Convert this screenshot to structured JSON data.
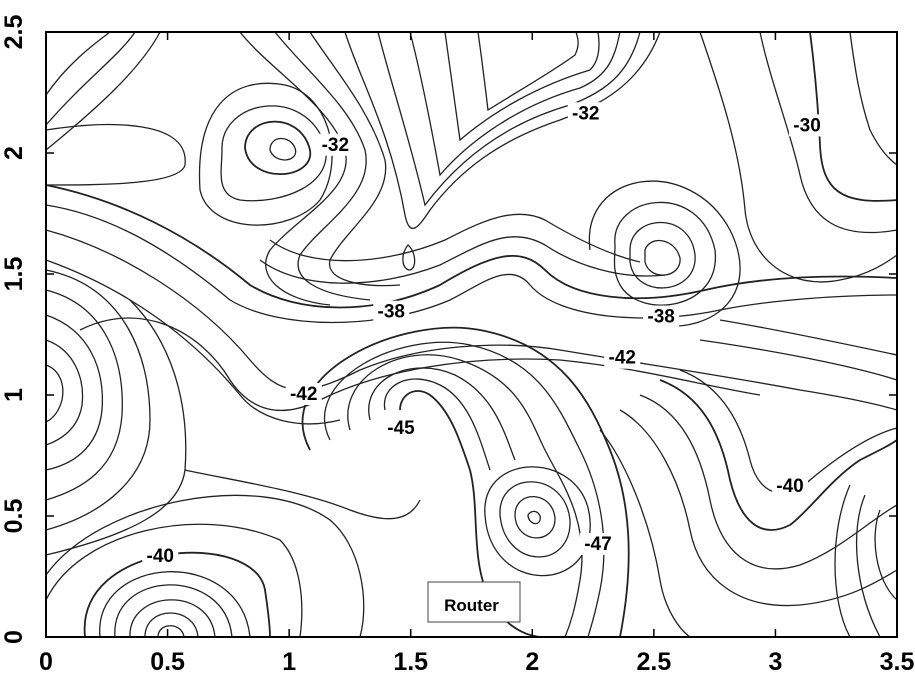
{
  "chart_data": {
    "type": "contour",
    "title": "",
    "xlabel": "",
    "ylabel": "",
    "xlim": [
      0,
      3.5
    ],
    "ylim": [
      0,
      2.5
    ],
    "x_ticks": [
      "0",
      "0.5",
      "1",
      "1.5",
      "2",
      "2.5",
      "3",
      "3.5"
    ],
    "y_ticks": [
      "0",
      "0.5",
      "1",
      "1.5",
      "2",
      "2.5"
    ],
    "x_tick_values": [
      0,
      0.5,
      1,
      1.5,
      2,
      2.5,
      3,
      3.5
    ],
    "y_tick_values": [
      0,
      0.5,
      1,
      1.5,
      2,
      2.5
    ],
    "grid": false,
    "contour_labels": [
      {
        "text": "-32",
        "x": 1.19,
        "y": 2.03
      },
      {
        "text": "-32",
        "x": 2.22,
        "y": 2.16
      },
      {
        "text": "-30",
        "x": 3.13,
        "y": 2.11
      },
      {
        "text": "-38",
        "x": 1.42,
        "y": 1.34
      },
      {
        "text": "-38",
        "x": 2.53,
        "y": 1.32
      },
      {
        "text": "-42",
        "x": 2.37,
        "y": 1.15
      },
      {
        "text": "-42",
        "x": 1.06,
        "y": 1.0
      },
      {
        "text": "-45",
        "x": 1.46,
        "y": 0.86
      },
      {
        "text": "-40",
        "x": 3.06,
        "y": 0.62
      },
      {
        "text": "-47",
        "x": 2.27,
        "y": 0.38
      },
      {
        "text": "-40",
        "x": 0.47,
        "y": 0.33
      }
    ],
    "annotations": [
      {
        "text": "Router",
        "x": 1.75,
        "y": 0.15
      }
    ]
  }
}
